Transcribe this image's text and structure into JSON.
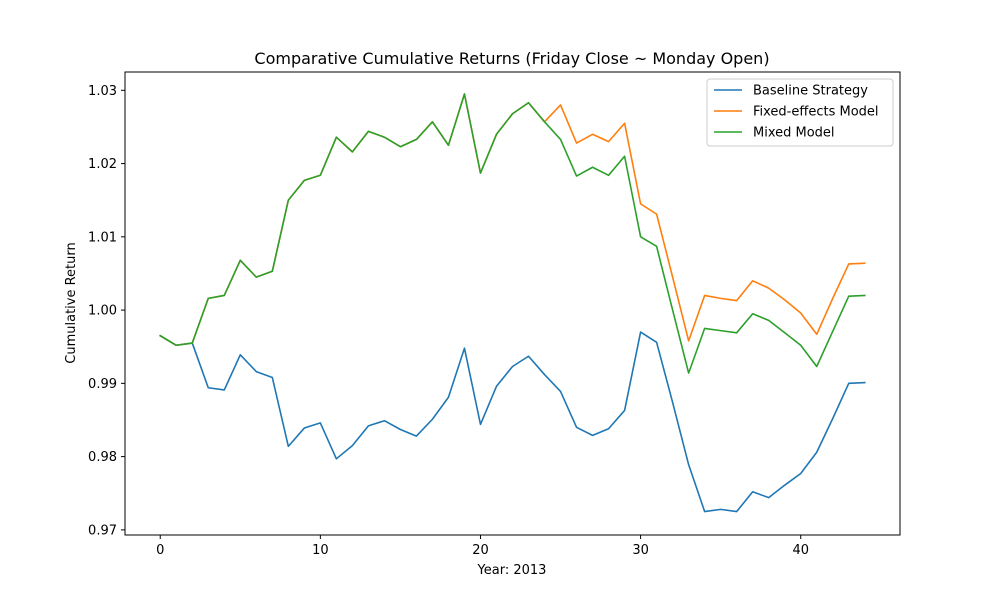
{
  "chart_data": {
    "type": "line",
    "title": "Comparative Cumulative Returns (Friday Close ~ Monday Open)",
    "xlabel": "Year: 2013",
    "ylabel": "Cumulative Return",
    "xlim": [
      -2.2,
      46.2
    ],
    "ylim": [
      0.9693,
      1.0325
    ],
    "xticks": [
      0,
      10,
      20,
      30,
      40
    ],
    "xtick_labels": [
      "0",
      "10",
      "20",
      "30",
      "40"
    ],
    "yticks": [
      0.97,
      0.98,
      0.99,
      1.0,
      1.01,
      1.02,
      1.03
    ],
    "ytick_labels": [
      "0.97",
      "0.98",
      "0.99",
      "1.00",
      "1.01",
      "1.02",
      "1.03"
    ],
    "legend_position": "top-right",
    "grid": false,
    "x": [
      0,
      1,
      2,
      3,
      4,
      5,
      6,
      7,
      8,
      9,
      10,
      11,
      12,
      13,
      14,
      15,
      16,
      17,
      18,
      19,
      20,
      21,
      22,
      23,
      24,
      25,
      26,
      27,
      28,
      29,
      30,
      31,
      32,
      33,
      34,
      35,
      36,
      37,
      38,
      39,
      40,
      41,
      42,
      43,
      44
    ],
    "series": [
      {
        "name": "Baseline Strategy",
        "color": "#1f77b4",
        "values": [
          0.9965,
          0.9952,
          0.9955,
          0.9894,
          0.9891,
          0.9939,
          0.9916,
          0.9908,
          0.9814,
          0.9839,
          0.9846,
          0.9797,
          0.9815,
          0.9842,
          0.9849,
          0.9837,
          0.9828,
          0.9851,
          0.9881,
          0.9948,
          0.9844,
          0.9896,
          0.9923,
          0.9937,
          0.9912,
          0.9889,
          0.984,
          0.9829,
          0.9838,
          0.9863,
          0.997,
          0.9956,
          0.9874,
          0.9789,
          0.9725,
          0.9728,
          0.9725,
          0.9752,
          0.9744,
          0.9761,
          0.9777,
          0.9806,
          0.9852,
          0.99,
          0.9901
        ]
      },
      {
        "name": "Fixed-effects Model",
        "color": "#ff7f0e",
        "values": [
          0.9965,
          0.9952,
          0.9955,
          1.0016,
          1.002,
          1.0068,
          1.0045,
          1.0053,
          1.015,
          1.0177,
          1.0184,
          1.0236,
          1.0216,
          1.0244,
          1.0236,
          1.0223,
          1.0233,
          1.0257,
          1.0225,
          1.0295,
          1.0187,
          1.024,
          1.0268,
          1.0283,
          1.0257,
          1.028,
          1.0228,
          1.024,
          1.023,
          1.0255,
          1.0145,
          1.0131,
          1.0045,
          0.9958,
          1.002,
          1.0016,
          1.0013,
          1.004,
          1.003,
          1.0014,
          0.9996,
          0.9967,
          1.0016,
          1.0063,
          1.0064
        ]
      },
      {
        "name": "Mixed Model",
        "color": "#2ca02c",
        "values": [
          0.9965,
          0.9952,
          0.9955,
          1.0016,
          1.002,
          1.0068,
          1.0045,
          1.0053,
          1.015,
          1.0177,
          1.0184,
          1.0236,
          1.0216,
          1.0244,
          1.0236,
          1.0223,
          1.0233,
          1.0257,
          1.0225,
          1.0295,
          1.0187,
          1.024,
          1.0268,
          1.0283,
          1.0257,
          1.0233,
          1.0183,
          1.0195,
          1.0184,
          1.021,
          1.01,
          1.0087,
          1.0,
          0.9914,
          0.9975,
          0.9972,
          0.9969,
          0.9995,
          0.9986,
          0.9969,
          0.9952,
          0.9923,
          0.9971,
          1.0019,
          1.002
        ]
      }
    ]
  }
}
